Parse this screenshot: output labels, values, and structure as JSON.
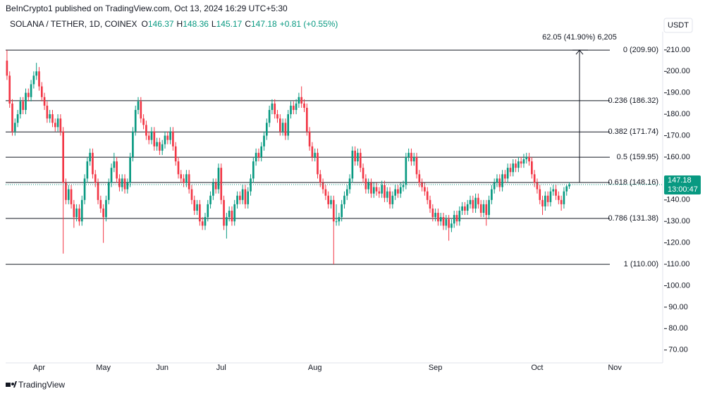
{
  "header": {
    "publisher": "BeInCrypto1 published on TradingView.com, Oct 13, 2024 16:29 UTC+5:30",
    "symbol": "SOLANA / TETHER, 1D, COINEX",
    "quote": [
      {
        "key": "O",
        "value": "146.37"
      },
      {
        "key": "H",
        "value": "148.36"
      },
      {
        "key": "L",
        "value": "145.17"
      },
      {
        "key": "C",
        "value": "147.18"
      }
    ],
    "change": "+0.81 (+0.55%)",
    "currency": "USDT"
  },
  "footer": "TradingView",
  "chart_data": {
    "type": "candlestick",
    "up_color": "#089981",
    "down_color": "#f23645",
    "grid": false,
    "ylim": [
      64,
      218.5
    ],
    "yticks": [
      {
        "value": 210,
        "label": "210.00"
      },
      {
        "value": 200,
        "label": "200.00"
      },
      {
        "value": 190,
        "label": "190.00"
      },
      {
        "value": 180,
        "label": "180.00"
      },
      {
        "value": 170,
        "label": "170.00"
      },
      {
        "value": 160,
        "label": "160.00"
      },
      {
        "value": 150,
        "label": "150.00"
      },
      {
        "value": 140,
        "label": "140.00"
      },
      {
        "value": 130,
        "label": "130.00"
      },
      {
        "value": 120,
        "label": "120.00"
      },
      {
        "value": 110,
        "label": "110.00"
      },
      {
        "value": 100,
        "label": "100.00"
      },
      {
        "value": 90,
        "label": "90.00"
      },
      {
        "value": 80,
        "label": "80.00"
      },
      {
        "value": 70,
        "label": "70.00"
      }
    ],
    "categories": [
      null,
      null,
      null,
      null,
      null,
      null,
      null,
      null,
      null,
      null,
      null,
      null,
      "Apr",
      null,
      null,
      null,
      null,
      null,
      null,
      null,
      null,
      null,
      null,
      null,
      null,
      null,
      null,
      null,
      null,
      null,
      null,
      null,
      null,
      null,
      null,
      null,
      "May",
      null,
      null,
      null,
      null,
      null,
      null,
      null,
      null,
      null,
      null,
      null,
      null,
      null,
      null,
      null,
      null,
      null,
      null,
      null,
      null,
      null,
      "Jun",
      null,
      null,
      null,
      null,
      null,
      null,
      null,
      null,
      null,
      null,
      null,
      null,
      null,
      null,
      null,
      null,
      null,
      null,
      null,
      null,
      null,
      "Jul",
      null,
      null,
      null,
      null,
      null,
      null,
      null,
      null,
      null,
      null,
      null,
      null,
      null,
      null,
      null,
      null,
      null,
      null,
      null,
      null,
      null,
      null,
      null,
      null,
      null,
      null,
      null,
      null,
      null,
      null,
      null,
      null,
      null,
      null,
      "Aug",
      null,
      null,
      null,
      null,
      null,
      null,
      null,
      null,
      null,
      null,
      null,
      null,
      null,
      null,
      null,
      null,
      null,
      null,
      null,
      null,
      null,
      null,
      null,
      null,
      null,
      null,
      null,
      null,
      null,
      null,
      null,
      null,
      null,
      null,
      null,
      null,
      null,
      null,
      null,
      null,
      null,
      null,
      null,
      null,
      "Sep",
      null,
      null,
      null,
      null,
      null,
      null,
      null,
      null,
      null,
      null,
      null,
      null,
      null,
      null,
      null,
      null,
      null,
      null,
      null,
      null,
      null,
      null,
      null,
      null,
      null,
      null,
      null,
      null,
      null,
      null,
      null,
      null,
      null,
      null,
      null,
      null,
      null,
      "Oct",
      null,
      null,
      null,
      null,
      null,
      null,
      null,
      null,
      null,
      null,
      null,
      null,
      null,
      null,
      null,
      null,
      null,
      null,
      null,
      null,
      null,
      null,
      null,
      null,
      null,
      null,
      null,
      null,
      "Nov"
    ],
    "ohlc": [
      [
        205,
        209.9,
        196,
        198
      ],
      [
        198,
        200,
        183,
        185
      ],
      [
        185,
        187,
        170,
        172
      ],
      [
        172,
        178,
        170,
        176
      ],
      [
        176,
        182,
        174,
        180
      ],
      [
        180,
        188,
        178,
        186
      ],
      [
        186,
        188,
        180,
        182
      ],
      [
        182,
        192,
        180,
        190
      ],
      [
        190,
        192,
        186,
        188
      ],
      [
        188,
        196,
        186,
        194
      ],
      [
        194,
        200,
        192,
        198
      ],
      [
        198,
        204,
        196,
        200
      ],
      [
        200,
        202,
        191,
        193
      ],
      [
        193,
        195,
        186,
        188
      ],
      [
        188,
        190,
        182,
        184
      ],
      [
        184,
        186,
        176,
        178
      ],
      [
        178,
        182,
        176,
        180
      ],
      [
        180,
        182,
        174,
        176
      ],
      [
        176,
        178,
        172,
        174
      ],
      [
        174,
        180,
        172,
        178
      ],
      [
        178,
        180,
        170,
        172
      ],
      [
        172,
        174,
        115,
        148
      ],
      [
        148,
        150,
        138,
        140
      ],
      [
        140,
        147,
        138,
        145
      ],
      [
        145,
        147,
        136,
        138
      ],
      [
        138,
        140,
        127,
        132
      ],
      [
        132,
        138,
        130,
        136
      ],
      [
        136,
        138,
        128,
        130
      ],
      [
        130,
        142,
        128,
        140
      ],
      [
        140,
        152,
        138,
        150
      ],
      [
        150,
        160,
        148,
        158
      ],
      [
        158,
        164,
        156,
        162
      ],
      [
        162,
        164,
        150,
        152
      ],
      [
        152,
        154,
        146,
        148
      ],
      [
        148,
        150,
        138,
        140
      ],
      [
        140,
        142,
        134,
        136
      ],
      [
        136,
        138,
        120,
        132
      ],
      [
        132,
        142,
        130,
        140
      ],
      [
        140,
        150,
        138,
        148
      ],
      [
        148,
        157,
        146,
        155
      ],
      [
        155,
        162,
        153,
        158
      ],
      [
        158,
        160,
        148,
        150
      ],
      [
        150,
        152,
        144,
        146
      ],
      [
        146,
        152,
        144,
        150
      ],
      [
        150,
        152,
        143,
        145
      ],
      [
        145,
        150,
        143,
        148
      ],
      [
        148,
        162,
        146,
        160
      ],
      [
        160,
        174,
        158,
        172
      ],
      [
        172,
        184,
        170,
        182
      ],
      [
        182,
        188,
        180,
        186
      ],
      [
        186,
        188,
        176,
        178
      ],
      [
        178,
        180,
        173,
        175
      ],
      [
        175,
        177,
        168,
        170
      ],
      [
        170,
        172,
        166,
        168
      ],
      [
        168,
        174,
        166,
        172
      ],
      [
        172,
        174,
        163,
        165
      ],
      [
        165,
        169,
        163,
        167
      ],
      [
        167,
        169,
        161,
        163
      ],
      [
        163,
        168,
        161,
        166
      ],
      [
        166,
        172,
        164,
        170
      ],
      [
        170,
        172,
        166,
        168
      ],
      [
        168,
        174,
        166,
        172
      ],
      [
        172,
        174,
        163,
        165
      ],
      [
        165,
        167,
        156,
        158
      ],
      [
        158,
        160,
        150,
        152
      ],
      [
        152,
        154,
        148,
        150
      ],
      [
        150,
        152,
        146,
        148
      ],
      [
        148,
        154,
        146,
        152
      ],
      [
        152,
        154,
        143,
        145
      ],
      [
        145,
        147,
        138,
        140
      ],
      [
        140,
        142,
        133,
        135
      ],
      [
        135,
        140,
        133,
        138
      ],
      [
        138,
        140,
        128,
        130
      ],
      [
        130,
        132,
        126,
        128
      ],
      [
        128,
        134,
        126,
        132
      ],
      [
        132,
        140,
        130,
        138
      ],
      [
        138,
        144,
        136,
        142
      ],
      [
        142,
        150,
        140,
        148
      ],
      [
        148,
        150,
        143,
        145
      ],
      [
        145,
        157,
        143,
        155
      ],
      [
        155,
        157,
        138,
        140
      ],
      [
        140,
        142,
        126,
        128
      ],
      [
        128,
        134,
        122,
        132
      ],
      [
        132,
        137,
        130,
        135
      ],
      [
        135,
        137,
        128,
        130
      ],
      [
        130,
        140,
        128,
        138
      ],
      [
        138,
        144,
        136,
        142
      ],
      [
        142,
        144,
        138,
        140
      ],
      [
        140,
        147,
        138,
        145
      ],
      [
        145,
        147,
        136,
        138
      ],
      [
        138,
        146,
        136,
        144
      ],
      [
        144,
        152,
        142,
        150
      ],
      [
        150,
        160,
        148,
        158
      ],
      [
        158,
        164,
        156,
        162
      ],
      [
        162,
        164,
        158,
        160
      ],
      [
        160,
        167,
        158,
        165
      ],
      [
        165,
        172,
        163,
        170
      ],
      [
        170,
        178,
        168,
        176
      ],
      [
        176,
        184,
        174,
        182
      ],
      [
        182,
        187,
        180,
        185
      ],
      [
        185,
        187,
        178,
        180
      ],
      [
        180,
        182,
        176,
        178
      ],
      [
        178,
        180,
        170,
        172
      ],
      [
        172,
        178,
        170,
        176
      ],
      [
        176,
        178,
        168,
        170
      ],
      [
        170,
        182,
        168,
        180
      ],
      [
        180,
        186,
        178,
        184
      ],
      [
        184,
        186,
        180,
        182
      ],
      [
        182,
        187,
        180,
        185
      ],
      [
        185,
        190,
        183,
        188
      ],
      [
        188,
        193,
        183,
        185
      ],
      [
        185,
        187,
        181,
        183
      ],
      [
        183,
        185,
        170,
        172
      ],
      [
        172,
        174,
        163,
        165
      ],
      [
        165,
        167,
        158,
        160
      ],
      [
        160,
        164,
        158,
        162
      ],
      [
        162,
        164,
        150,
        152
      ],
      [
        152,
        154,
        146,
        148
      ],
      [
        148,
        150,
        143,
        145
      ],
      [
        145,
        147,
        140,
        142
      ],
      [
        142,
        144,
        136,
        138
      ],
      [
        138,
        142,
        136,
        140
      ],
      [
        140,
        142,
        110,
        130
      ],
      [
        130,
        138,
        128,
        130
      ],
      [
        130,
        134,
        128,
        132
      ],
      [
        132,
        140,
        130,
        138
      ],
      [
        138,
        144,
        136,
        142
      ],
      [
        142,
        147,
        140,
        145
      ],
      [
        145,
        152,
        143,
        150
      ],
      [
        150,
        165,
        148,
        163
      ],
      [
        163,
        165,
        156,
        158
      ],
      [
        158,
        164,
        156,
        162
      ],
      [
        162,
        164,
        153,
        155
      ],
      [
        155,
        157,
        148,
        150
      ],
      [
        150,
        152,
        143,
        145
      ],
      [
        145,
        150,
        143,
        148
      ],
      [
        148,
        150,
        141,
        143
      ],
      [
        143,
        148,
        141,
        146
      ],
      [
        146,
        148,
        142,
        144
      ],
      [
        144,
        146,
        141,
        143
      ],
      [
        143,
        149,
        141,
        147
      ],
      [
        147,
        149,
        139,
        141
      ],
      [
        141,
        146,
        139,
        144
      ],
      [
        144,
        146,
        136,
        138
      ],
      [
        138,
        144,
        136,
        142
      ],
      [
        142,
        147,
        140,
        145
      ],
      [
        145,
        147,
        141,
        143
      ],
      [
        143,
        148,
        141,
        146
      ],
      [
        146,
        149,
        144,
        147
      ],
      [
        147,
        162,
        145,
        160
      ],
      [
        160,
        164,
        158,
        162
      ],
      [
        162,
        164,
        156,
        158
      ],
      [
        158,
        162,
        156,
        160
      ],
      [
        160,
        162,
        150,
        152
      ],
      [
        152,
        154,
        146,
        148
      ],
      [
        148,
        150,
        144,
        146
      ],
      [
        146,
        148,
        142,
        144
      ],
      [
        144,
        146,
        138,
        140
      ],
      [
        140,
        142,
        134,
        136
      ],
      [
        136,
        138,
        130,
        132
      ],
      [
        132,
        136,
        130,
        134
      ],
      [
        134,
        136,
        128,
        130
      ],
      [
        130,
        134,
        128,
        132
      ],
      [
        132,
        134,
        126,
        128
      ],
      [
        128,
        133,
        126,
        131
      ],
      [
        131,
        133,
        121,
        127
      ],
      [
        127,
        131,
        125,
        129
      ],
      [
        129,
        135,
        127,
        133
      ],
      [
        133,
        135,
        128,
        130
      ],
      [
        130,
        137,
        128,
        135
      ],
      [
        135,
        139,
        133,
        137
      ],
      [
        137,
        139,
        133,
        135
      ],
      [
        135,
        140,
        133,
        138
      ],
      [
        138,
        142,
        136,
        140
      ],
      [
        140,
        142,
        134,
        136
      ],
      [
        136,
        143,
        134,
        141
      ],
      [
        141,
        143,
        136,
        138
      ],
      [
        138,
        140,
        132,
        134
      ],
      [
        134,
        140,
        132,
        138
      ],
      [
        138,
        140,
        128,
        133
      ],
      [
        133,
        142,
        131,
        140
      ],
      [
        140,
        147,
        138,
        145
      ],
      [
        145,
        150,
        143,
        148
      ],
      [
        148,
        152,
        146,
        150
      ],
      [
        150,
        152,
        144,
        146
      ],
      [
        146,
        154,
        144,
        152
      ],
      [
        152,
        154,
        148,
        150
      ],
      [
        150,
        157,
        148,
        155
      ],
      [
        155,
        157,
        151,
        153
      ],
      [
        153,
        159,
        151,
        157
      ],
      [
        157,
        159,
        153,
        155
      ],
      [
        155,
        160,
        153,
        158
      ],
      [
        158,
        160,
        155,
        157
      ],
      [
        157,
        161.5,
        155,
        159
      ],
      [
        159,
        162,
        157,
        160
      ],
      [
        160,
        162,
        156,
        158
      ],
      [
        158,
        160,
        150,
        152
      ],
      [
        152,
        154,
        146,
        148
      ],
      [
        148,
        150,
        143,
        145
      ],
      [
        145,
        147,
        138,
        140
      ],
      [
        140,
        142,
        133,
        137
      ],
      [
        137,
        144,
        135,
        142
      ],
      [
        142,
        144,
        137,
        139
      ],
      [
        139,
        146,
        137,
        144
      ],
      [
        144,
        147,
        142,
        145
      ],
      [
        145,
        147,
        140,
        142
      ],
      [
        142,
        144,
        138,
        140
      ],
      [
        140,
        142,
        135,
        138
      ],
      [
        138,
        146,
        136,
        144
      ],
      [
        144,
        147,
        142,
        146.37
      ],
      [
        146.37,
        148.36,
        145.17,
        147.18
      ],
      null,
      null,
      null,
      null,
      null,
      null,
      null,
      null,
      null,
      null,
      null,
      null,
      null,
      null,
      null,
      null,
      null
    ],
    "fib_levels": [
      {
        "value": 209.9,
        "label": "0 (209.90)"
      },
      {
        "value": 186.32,
        "label": "0.236 (186.32)"
      },
      {
        "value": 171.74,
        "label": "0.382 (171.74)"
      },
      {
        "value": 159.95,
        "label": "0.5 (159.95)"
      },
      {
        "value": 148.16,
        "label": "0.618 (148.16)"
      },
      {
        "value": 131.38,
        "label": "0.786 (131.38)"
      },
      {
        "value": 110,
        "label": "1 (110.00)"
      }
    ],
    "measure": {
      "label": "62.05 (41.90%) 6,205",
      "from": 148.16,
      "to": 209.9
    },
    "last_price": 147.18,
    "countdown": "13:00:47"
  }
}
